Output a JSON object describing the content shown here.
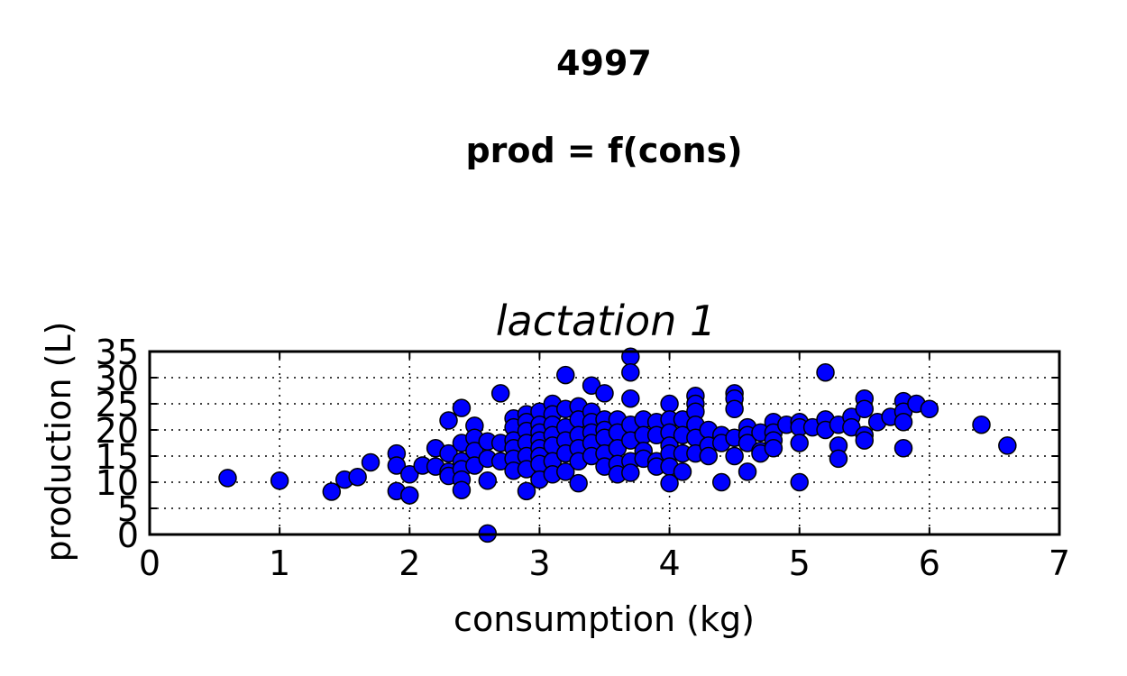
{
  "figure": {
    "title": "4997",
    "subtitle": "prod = f(cons)"
  },
  "chart_data": {
    "type": "scatter",
    "title": "lactation 1",
    "xlabel": "consumption (kg)",
    "ylabel": "production (L)",
    "xlim": [
      0,
      7
    ],
    "ylim": [
      0,
      35
    ],
    "xticks": [
      0,
      1,
      2,
      3,
      4,
      5,
      6,
      7
    ],
    "yticks": [
      0,
      5,
      10,
      15,
      20,
      25,
      30,
      35
    ],
    "grid": true,
    "marker_color": "#0000ff",
    "series": [
      {
        "points": [
          [
            0.6,
            10.8
          ],
          [
            1.0,
            10.3
          ],
          [
            1.4,
            8.2
          ],
          [
            1.5,
            10.5
          ],
          [
            1.6,
            11.0
          ],
          [
            1.7,
            13.8
          ],
          [
            1.9,
            15.5
          ],
          [
            1.9,
            13.2
          ],
          [
            1.9,
            8.3
          ],
          [
            2.0,
            11.5
          ],
          [
            2.0,
            7.5
          ],
          [
            2.1,
            13.2
          ],
          [
            2.2,
            16.5
          ],
          [
            2.2,
            13.0
          ],
          [
            2.3,
            21.8
          ],
          [
            2.3,
            15.5
          ],
          [
            2.3,
            12.0
          ],
          [
            2.3,
            11.2
          ],
          [
            2.4,
            24.2
          ],
          [
            2.4,
            17.5
          ],
          [
            2.4,
            14.0
          ],
          [
            2.4,
            12.5
          ],
          [
            2.4,
            10.5
          ],
          [
            2.4,
            8.5
          ],
          [
            2.5,
            20.8
          ],
          [
            2.5,
            18.5
          ],
          [
            2.5,
            16.0
          ],
          [
            2.5,
            13.2
          ],
          [
            2.6,
            17.8
          ],
          [
            2.6,
            14.5
          ],
          [
            2.6,
            10.3
          ],
          [
            2.6,
            0.2
          ],
          [
            2.7,
            27.0
          ],
          [
            2.7,
            17.5
          ],
          [
            2.7,
            14.0
          ],
          [
            2.8,
            22.2
          ],
          [
            2.8,
            20.5
          ],
          [
            2.8,
            18.0
          ],
          [
            2.8,
            16.5
          ],
          [
            2.8,
            14.5
          ],
          [
            2.8,
            12.2
          ],
          [
            2.9,
            23.0
          ],
          [
            2.9,
            21.5
          ],
          [
            2.9,
            19.8
          ],
          [
            2.9,
            17.5
          ],
          [
            2.9,
            15.0
          ],
          [
            2.9,
            12.5
          ],
          [
            2.9,
            8.3
          ],
          [
            3.0,
            23.5
          ],
          [
            3.0,
            21.0
          ],
          [
            3.0,
            19.5
          ],
          [
            3.0,
            18.0
          ],
          [
            3.0,
            16.5
          ],
          [
            3.0,
            15.0
          ],
          [
            3.0,
            13.5
          ],
          [
            3.0,
            10.5
          ],
          [
            3.1,
            25.0
          ],
          [
            3.1,
            23.0
          ],
          [
            3.1,
            21.0
          ],
          [
            3.1,
            19.0
          ],
          [
            3.1,
            17.0
          ],
          [
            3.1,
            14.0
          ],
          [
            3.1,
            11.5
          ],
          [
            3.2,
            30.5
          ],
          [
            3.2,
            24.0
          ],
          [
            3.2,
            20.5
          ],
          [
            3.2,
            18.0
          ],
          [
            3.2,
            15.5
          ],
          [
            3.2,
            12.0
          ],
          [
            3.3,
            24.5
          ],
          [
            3.3,
            22.0
          ],
          [
            3.3,
            19.0
          ],
          [
            3.3,
            16.5
          ],
          [
            3.3,
            14.0
          ],
          [
            3.3,
            9.8
          ],
          [
            3.4,
            28.5
          ],
          [
            3.4,
            23.5
          ],
          [
            3.4,
            21.5
          ],
          [
            3.4,
            19.5
          ],
          [
            3.4,
            17.5
          ],
          [
            3.4,
            15.0
          ],
          [
            3.5,
            27.0
          ],
          [
            3.5,
            22.0
          ],
          [
            3.5,
            20.0
          ],
          [
            3.5,
            18.5
          ],
          [
            3.5,
            15.5
          ],
          [
            3.5,
            13.0
          ],
          [
            3.6,
            22.0
          ],
          [
            3.6,
            19.5
          ],
          [
            3.6,
            16.5
          ],
          [
            3.6,
            13.5
          ],
          [
            3.6,
            11.5
          ],
          [
            3.7,
            34.0
          ],
          [
            3.7,
            31.0
          ],
          [
            3.7,
            26.0
          ],
          [
            3.7,
            21.0
          ],
          [
            3.7,
            18.0
          ],
          [
            3.7,
            14.0
          ],
          [
            3.7,
            11.8
          ],
          [
            3.8,
            22.0
          ],
          [
            3.8,
            19.0
          ],
          [
            3.8,
            16.0
          ],
          [
            3.8,
            14.5
          ],
          [
            3.9,
            21.5
          ],
          [
            3.9,
            19.0
          ],
          [
            3.9,
            14.0
          ],
          [
            3.9,
            13.0
          ],
          [
            4.0,
            25.0
          ],
          [
            4.0,
            22.0
          ],
          [
            4.0,
            19.5
          ],
          [
            4.0,
            17.0
          ],
          [
            4.0,
            15.5
          ],
          [
            4.0,
            13.0
          ],
          [
            4.0,
            9.8
          ],
          [
            4.1,
            22.0
          ],
          [
            4.1,
            19.0
          ],
          [
            4.1,
            15.5
          ],
          [
            4.1,
            12.0
          ],
          [
            4.2,
            26.5
          ],
          [
            4.2,
            25.0
          ],
          [
            4.2,
            23.5
          ],
          [
            4.2,
            21.0
          ],
          [
            4.2,
            18.5
          ],
          [
            4.2,
            15.5
          ],
          [
            4.3,
            20.0
          ],
          [
            4.3,
            17.0
          ],
          [
            4.3,
            15.0
          ],
          [
            4.4,
            19.0
          ],
          [
            4.4,
            17.5
          ],
          [
            4.4,
            10.0
          ],
          [
            4.5,
            27.0
          ],
          [
            4.5,
            26.0
          ],
          [
            4.5,
            24.0
          ],
          [
            4.5,
            18.5
          ],
          [
            4.5,
            15.0
          ],
          [
            4.6,
            20.5
          ],
          [
            4.6,
            19.0
          ],
          [
            4.6,
            17.5
          ],
          [
            4.6,
            12.0
          ],
          [
            4.7,
            19.5
          ],
          [
            4.7,
            16.0
          ],
          [
            4.7,
            15.5
          ],
          [
            4.8,
            21.5
          ],
          [
            4.8,
            19.5
          ],
          [
            4.8,
            18.0
          ],
          [
            4.8,
            16.5
          ],
          [
            4.9,
            21.0
          ],
          [
            5.0,
            21.5
          ],
          [
            5.0,
            20.5
          ],
          [
            5.0,
            17.5
          ],
          [
            5.0,
            10.0
          ],
          [
            5.1,
            20.5
          ],
          [
            5.2,
            31.0
          ],
          [
            5.2,
            22.0
          ],
          [
            5.2,
            20.0
          ],
          [
            5.3,
            21.0
          ],
          [
            5.3,
            17.0
          ],
          [
            5.3,
            14.5
          ],
          [
            5.4,
            22.5
          ],
          [
            5.4,
            20.5
          ],
          [
            5.5,
            26.0
          ],
          [
            5.5,
            24.0
          ],
          [
            5.5,
            19.0
          ],
          [
            5.5,
            18.0
          ],
          [
            5.6,
            21.5
          ],
          [
            5.7,
            22.5
          ],
          [
            5.8,
            25.5
          ],
          [
            5.8,
            23.5
          ],
          [
            5.8,
            21.5
          ],
          [
            5.8,
            16.5
          ],
          [
            5.9,
            25.0
          ],
          [
            6.0,
            24.0
          ],
          [
            6.4,
            21.0
          ],
          [
            6.6,
            17.0
          ]
        ]
      }
    ]
  }
}
